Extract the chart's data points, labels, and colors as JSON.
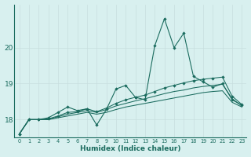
{
  "x": [
    0,
    1,
    2,
    3,
    4,
    5,
    6,
    7,
    8,
    9,
    10,
    11,
    12,
    13,
    14,
    15,
    16,
    17,
    18,
    19,
    20,
    21,
    22,
    23
  ],
  "line_main": [
    17.6,
    18.0,
    18.0,
    18.05,
    18.2,
    18.35,
    18.25,
    18.3,
    17.85,
    18.28,
    18.85,
    18.95,
    18.62,
    18.55,
    20.05,
    20.8,
    20.0,
    20.4,
    19.2,
    19.05,
    18.9,
    19.0,
    18.55,
    18.4
  ],
  "line_smooth1": [
    17.6,
    18.0,
    18.0,
    18.02,
    18.1,
    18.2,
    18.22,
    18.3,
    18.22,
    18.32,
    18.45,
    18.55,
    18.62,
    18.68,
    18.78,
    18.88,
    18.95,
    19.02,
    19.08,
    19.12,
    19.15,
    19.18,
    18.65,
    18.42
  ],
  "line_smooth2": [
    17.6,
    18.0,
    18.0,
    18.0,
    18.08,
    18.15,
    18.2,
    18.25,
    18.2,
    18.28,
    18.38,
    18.45,
    18.52,
    18.58,
    18.65,
    18.72,
    18.78,
    18.82,
    18.88,
    18.92,
    18.95,
    18.98,
    18.58,
    18.38
  ],
  "line_flat": [
    17.6,
    18.0,
    18.0,
    18.0,
    18.05,
    18.1,
    18.15,
    18.2,
    18.15,
    18.2,
    18.28,
    18.35,
    18.4,
    18.45,
    18.5,
    18.55,
    18.6,
    18.65,
    18.7,
    18.75,
    18.78,
    18.8,
    18.48,
    18.35
  ],
  "line_color": "#1a6b5e",
  "bg_color": "#d8f0ef",
  "grid_color": "#c8dede",
  "xlabel": "Humidex (Indice chaleur)",
  "ylim": [
    17.5,
    21.2
  ],
  "xlim": [
    -0.5,
    23.5
  ],
  "yticks": [
    18,
    19,
    20
  ],
  "xticks": [
    0,
    1,
    2,
    3,
    4,
    5,
    6,
    7,
    8,
    9,
    10,
    11,
    12,
    13,
    14,
    15,
    16,
    17,
    18,
    19,
    20,
    21,
    22,
    23
  ]
}
